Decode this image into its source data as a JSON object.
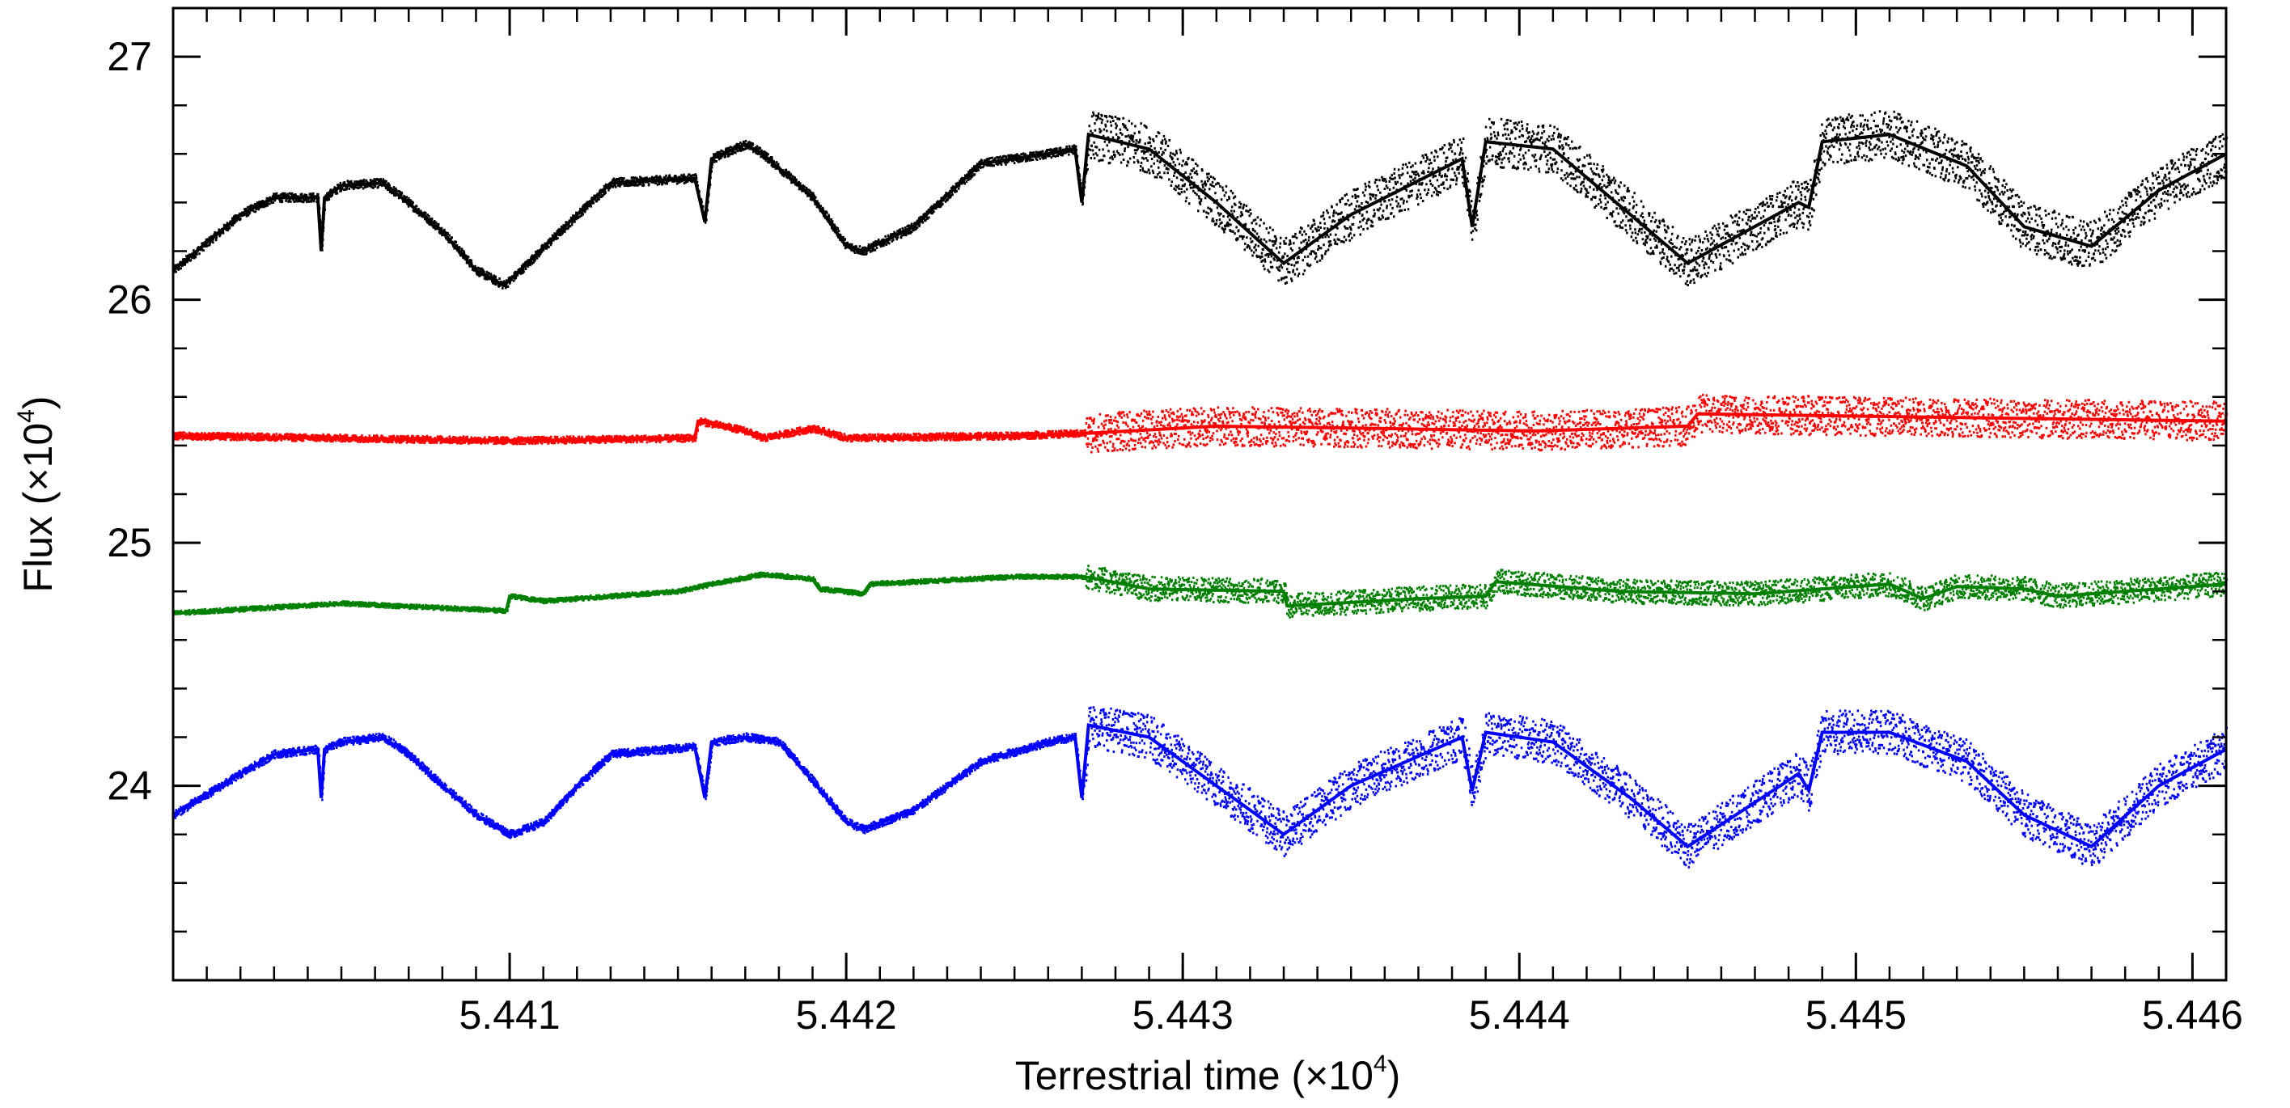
{
  "chart_data": {
    "type": "scatter",
    "xlabel": "Terrestrial time (×10",
    "xlabel_exponent": "4",
    "xlabel_close": ")",
    "ylabel": "Flux (×10",
    "ylabel_exponent": "4",
    "ylabel_close": ")",
    "xlim": [
      5.44,
      5.4461
    ],
    "ylim": [
      23.2,
      27.2
    ],
    "x_ticks": [
      5.441,
      5.442,
      5.443,
      5.444,
      5.445,
      5.446
    ],
    "x_tick_labels": [
      "5.441",
      "5.442",
      "5.443",
      "5.444",
      "5.445",
      "5.446"
    ],
    "y_ticks": [
      24,
      25,
      26,
      27
    ],
    "y_tick_labels": [
      "24",
      "25",
      "26",
      "27"
    ],
    "grid": false,
    "legend": "none",
    "series": [
      {
        "color": "#000000",
        "x": [
          5.44,
          5.4402,
          5.4403,
          5.44043,
          5.44044,
          5.44045,
          5.4405,
          5.44062,
          5.44068,
          5.4408,
          5.4409,
          5.44098,
          5.441,
          5.44103,
          5.4412,
          5.4413,
          5.44155,
          5.44158,
          5.4416,
          5.4417,
          5.44175,
          5.4419,
          5.442,
          5.44205,
          5.4422,
          5.4424,
          5.4426,
          5.44268,
          5.4427,
          5.44272,
          5.4429,
          5.4431,
          5.4433,
          5.4435,
          5.44383,
          5.44386,
          5.4439,
          5.4441,
          5.44433,
          5.4445,
          5.44483,
          5.44486,
          5.4449,
          5.4451,
          5.44533,
          5.4455,
          5.4457,
          5.4459,
          5.4461
        ],
        "y": [
          26.12,
          26.35,
          26.42,
          26.42,
          26.2,
          26.42,
          26.47,
          26.48,
          26.42,
          26.28,
          26.12,
          26.06,
          26.08,
          26.12,
          26.35,
          26.48,
          26.5,
          26.32,
          26.58,
          26.64,
          26.6,
          26.42,
          26.22,
          26.2,
          26.3,
          26.56,
          26.6,
          26.62,
          26.4,
          26.68,
          26.62,
          26.4,
          26.15,
          26.35,
          26.58,
          26.3,
          26.65,
          26.62,
          26.35,
          26.15,
          26.4,
          26.38,
          26.65,
          26.68,
          26.55,
          26.3,
          26.22,
          26.45,
          26.6
        ],
        "noise_after": 5.44271,
        "noise_amplitude": 0.1
      },
      {
        "color": "#ff0000",
        "x": [
          5.44,
          5.4405,
          5.441,
          5.44155,
          5.44156,
          5.4417,
          5.44175,
          5.4419,
          5.442,
          5.4425,
          5.44271,
          5.4431,
          5.4436,
          5.44405,
          5.4445,
          5.44453,
          5.4461
        ],
        "y": [
          25.44,
          25.43,
          25.42,
          25.43,
          25.5,
          25.46,
          25.43,
          25.47,
          25.43,
          25.44,
          25.45,
          25.48,
          25.47,
          25.46,
          25.48,
          25.53,
          25.5
        ],
        "noise_after": 5.44271,
        "noise_amplitude": 0.08
      },
      {
        "color": "#008000",
        "x": [
          5.44,
          5.4405,
          5.44099,
          5.441,
          5.4411,
          5.4415,
          5.4416,
          5.44175,
          5.4419,
          5.44192,
          5.44205,
          5.44207,
          5.4425,
          5.44271,
          5.4429,
          5.4433,
          5.44331,
          5.4437,
          5.4439,
          5.44393,
          5.4443,
          5.4447,
          5.4451,
          5.4452,
          5.4453,
          5.4455,
          5.4456,
          5.4461
        ],
        "y": [
          24.71,
          24.75,
          24.72,
          24.78,
          24.76,
          24.8,
          24.83,
          24.87,
          24.85,
          24.81,
          24.79,
          24.83,
          24.86,
          24.86,
          24.81,
          24.8,
          24.74,
          24.77,
          24.78,
          24.84,
          24.8,
          24.79,
          24.83,
          24.77,
          24.82,
          24.81,
          24.78,
          24.83
        ],
        "noise_after": 5.44271,
        "noise_amplitude": 0.05
      },
      {
        "color": "#0000ff",
        "x": [
          5.44,
          5.4402,
          5.4403,
          5.44043,
          5.44044,
          5.44045,
          5.4405,
          5.44062,
          5.44068,
          5.4408,
          5.4409,
          5.441,
          5.4411,
          5.4412,
          5.4413,
          5.44155,
          5.44158,
          5.4416,
          5.4417,
          5.4418,
          5.4419,
          5.442,
          5.44205,
          5.4422,
          5.4424,
          5.4426,
          5.44268,
          5.4427,
          5.44272,
          5.4429,
          5.4431,
          5.4433,
          5.4435,
          5.44383,
          5.44386,
          5.4439,
          5.4441,
          5.44433,
          5.4445,
          5.44483,
          5.44486,
          5.4449,
          5.4451,
          5.44533,
          5.4455,
          5.4457,
          5.4459,
          5.4461
        ],
        "y": [
          23.88,
          24.05,
          24.13,
          24.15,
          23.95,
          24.15,
          24.18,
          24.2,
          24.15,
          24.0,
          23.88,
          23.8,
          23.85,
          24.0,
          24.13,
          24.16,
          23.95,
          24.18,
          24.2,
          24.18,
          24.02,
          23.85,
          23.82,
          23.9,
          24.1,
          24.18,
          24.2,
          23.95,
          24.25,
          24.2,
          24.0,
          23.8,
          24.0,
          24.2,
          23.98,
          24.22,
          24.18,
          23.95,
          23.75,
          24.05,
          23.98,
          24.22,
          24.22,
          24.1,
          23.88,
          23.75,
          24.0,
          24.15
        ],
        "noise_after": 5.44271,
        "noise_amplitude": 0.09
      }
    ]
  }
}
